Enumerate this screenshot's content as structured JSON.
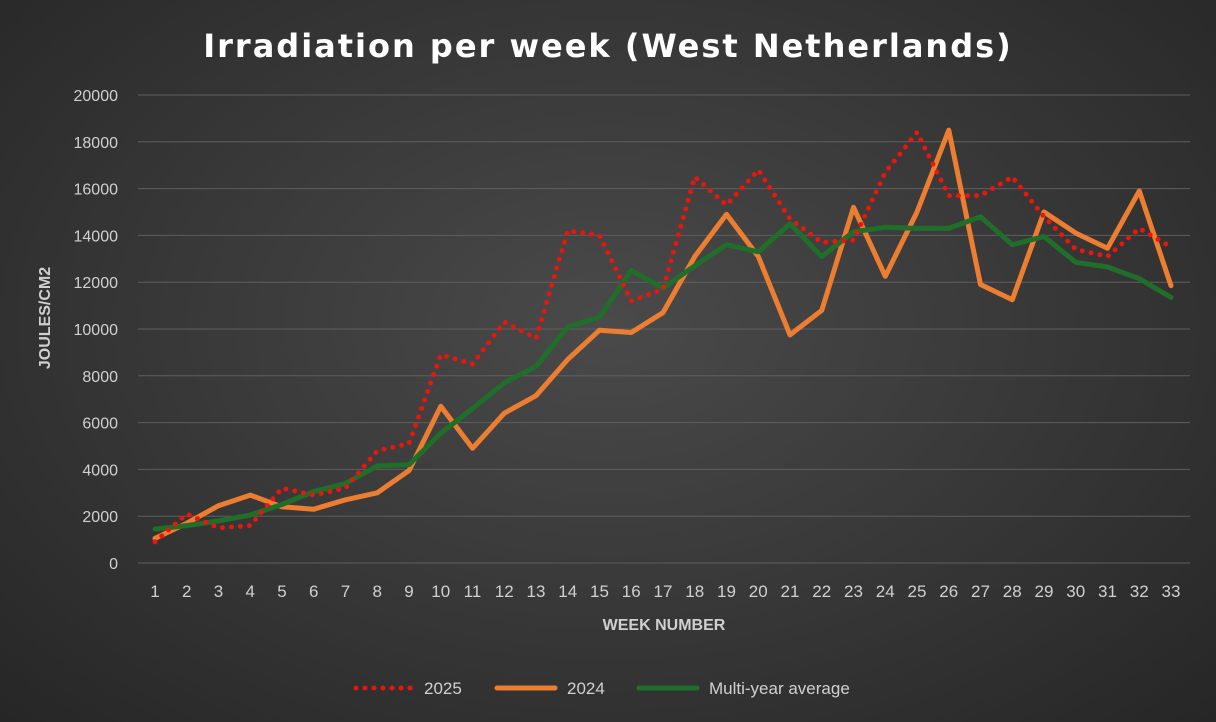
{
  "chart_data": {
    "type": "line",
    "title": "Irradiation per week (West Netherlands)",
    "xlabel": "WEEK NUMBER",
    "ylabel": "JOULES/CM2",
    "ylim": [
      0,
      20000
    ],
    "yticks": [
      0,
      2000,
      4000,
      6000,
      8000,
      10000,
      12000,
      14000,
      16000,
      18000,
      20000
    ],
    "grid": true,
    "legend": "bottom",
    "x": [
      1,
      2,
      3,
      4,
      5,
      6,
      7,
      8,
      9,
      10,
      11,
      12,
      13,
      14,
      15,
      16,
      17,
      18,
      19,
      20,
      21,
      22,
      23,
      24,
      25,
      26,
      27,
      28,
      29,
      30,
      31,
      32,
      33
    ],
    "series": [
      {
        "name": "2025",
        "style": "dotted",
        "color": "#e8160c",
        "values": [
          900,
          2100,
          1500,
          1600,
          3200,
          2900,
          3200,
          4800,
          5100,
          8900,
          8500,
          10300,
          9600,
          14200,
          14000,
          11200,
          11700,
          16500,
          15300,
          16800,
          14700,
          13700,
          13800,
          16700,
          18400,
          15700,
          15700,
          16500,
          14800,
          13400,
          13100,
          14300,
          13500
        ]
      },
      {
        "name": "2024",
        "style": "solid",
        "color": "#ed7d31",
        "values": [
          1050,
          1700,
          2450,
          2900,
          2400,
          2300,
          2700,
          3000,
          3950,
          6700,
          4900,
          6400,
          7150,
          8700,
          9950,
          9850,
          10700,
          13100,
          14900,
          13100,
          9750,
          10800,
          15200,
          12250,
          15000,
          18500,
          11900,
          11250,
          15000,
          14100,
          13450,
          15900,
          11850
        ]
      },
      {
        "name": "Multi-year average",
        "style": "solid",
        "color": "#1f6e2a",
        "values": [
          1450,
          1600,
          1800,
          2050,
          2500,
          3050,
          3400,
          4150,
          4200,
          5550,
          6600,
          7700,
          8400,
          10100,
          10500,
          12500,
          11750,
          12700,
          13600,
          13300,
          14500,
          13100,
          14150,
          14350,
          14300,
          14300,
          14800,
          13600,
          13950,
          12850,
          12650,
          12150,
          11350
        ]
      }
    ]
  }
}
